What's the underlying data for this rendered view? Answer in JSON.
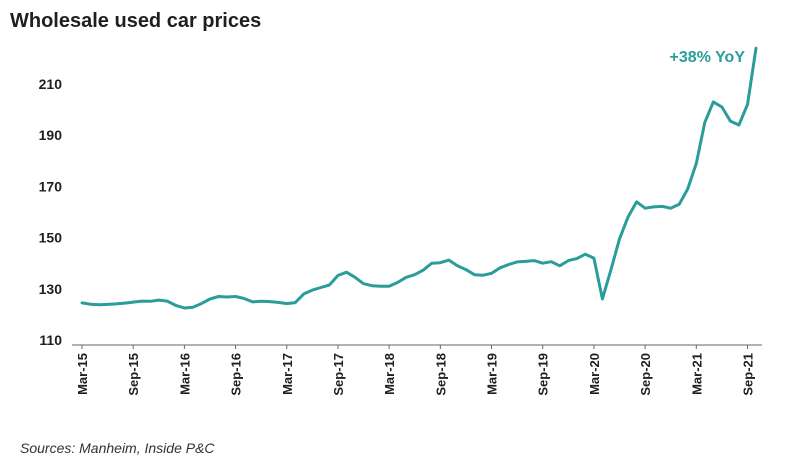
{
  "chart_data": {
    "type": "line",
    "title": "Wholesale used car prices",
    "source": "Sources: Manheim, Inside P&C",
    "annotation": "+38% YoY",
    "line_color": "#2a9d9b",
    "ylim": [
      110,
      225
    ],
    "yticks": [
      110,
      130,
      150,
      170,
      190,
      210
    ],
    "x_tick_labels": [
      "Mar-15",
      "Sep-15",
      "Mar-16",
      "Sep-16",
      "Mar-17",
      "Sep-17",
      "Mar-18",
      "Sep-18",
      "Mar-19",
      "Sep-19",
      "Mar-20",
      "Sep-20",
      "Mar-21",
      "Sep-21"
    ],
    "x_tick_every": 6,
    "series": [
      {
        "values": [
          124.5,
          124.0,
          123.8,
          123.9,
          124.1,
          124.4,
          124.8,
          125.2,
          125.1,
          125.6,
          125.2,
          123.5,
          122.5,
          122.8,
          124.2,
          126.0,
          127.0,
          126.8,
          127.0,
          126.2,
          124.9,
          125.1,
          125.0,
          124.7,
          124.2,
          124.6,
          128.0,
          129.5,
          130.5,
          131.5,
          135.2,
          136.5,
          134.5,
          132.0,
          131.2,
          131.0,
          131.0,
          132.5,
          134.5,
          135.5,
          137.3,
          140.0,
          140.2,
          141.2,
          139.0,
          137.5,
          135.5,
          135.3,
          136.0,
          138.2,
          139.5,
          140.5,
          140.7,
          141.0,
          140.0,
          140.6,
          139.0,
          141.0,
          141.8,
          143.5,
          142.0,
          126.0,
          137.5,
          149.5,
          158.0,
          164.0,
          161.5,
          162.0,
          162.2,
          161.5,
          163.0,
          169.0,
          179.0,
          195.0,
          203.0,
          201.0,
          195.5,
          194.0,
          202.0,
          224.0
        ]
      }
    ]
  }
}
